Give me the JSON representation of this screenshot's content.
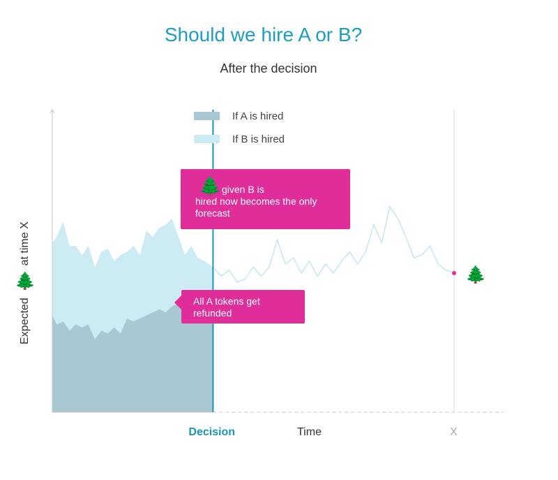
{
  "header": {
    "title": "Should we hire  A or B?",
    "subtitle": "After the decision"
  },
  "legend": {
    "a_label": "If  A is hired",
    "b_label": "If  B is hired"
  },
  "callouts": {
    "top_line1": "given B is",
    "top_rest": "hired now becomes the only forecast",
    "bottom": "All  A tokens get refunded"
  },
  "axis": {
    "y_label_top": "at time X",
    "y_label_bottom": "Expected",
    "icon": "tree-icon"
  },
  "colors": {
    "a_fill": "#a8c9d1",
    "b_fill": "#cdebf2",
    "b_line": "#c3e5ef",
    "decision_line": "#1b95b8",
    "callout": "#df2e99",
    "title": "#1e9dbf",
    "x_label": "#aaaaaa"
  },
  "chart_data": {
    "type": "area",
    "xlabel": "Time",
    "x_ticks": [
      {
        "label": "Decision",
        "x": 0.4,
        "color": "#1b95b8"
      },
      {
        "label": "X",
        "x": 1.0,
        "color": "#aaaaaa"
      }
    ],
    "x_range": [
      0,
      1.12
    ],
    "y_range": [
      0,
      1
    ],
    "grid": false,
    "legend_position": "top",
    "series": [
      {
        "name": "If  A is hired",
        "style": "filled-area",
        "x": [
          0,
          0.011,
          0.027,
          0.043,
          0.058,
          0.074,
          0.09,
          0.106,
          0.122,
          0.138,
          0.154,
          0.17,
          0.186,
          0.202,
          0.218,
          0.234,
          0.25,
          0.266,
          0.282,
          0.298,
          0.314,
          0.33,
          0.346,
          0.362,
          0.378,
          0.4
        ],
        "y": [
          0.32,
          0.29,
          0.3,
          0.27,
          0.29,
          0.28,
          0.29,
          0.24,
          0.27,
          0.26,
          0.28,
          0.26,
          0.31,
          0.3,
          0.31,
          0.32,
          0.33,
          0.34,
          0.33,
          0.35,
          0.36,
          0.37,
          0.39,
          0.36,
          0.39,
          0.38
        ]
      },
      {
        "name": "If  B is hired",
        "style": "area-then-line",
        "fill_until_x": 0.4,
        "x": [
          0,
          0.011,
          0.027,
          0.043,
          0.058,
          0.074,
          0.09,
          0.106,
          0.122,
          0.138,
          0.154,
          0.17,
          0.186,
          0.202,
          0.218,
          0.234,
          0.25,
          0.266,
          0.282,
          0.298,
          0.314,
          0.33,
          0.346,
          0.362,
          0.378,
          0.4,
          0.42,
          0.44,
          0.46,
          0.48,
          0.5,
          0.52,
          0.54,
          0.56,
          0.58,
          0.6,
          0.62,
          0.64,
          0.66,
          0.68,
          0.7,
          0.72,
          0.74,
          0.76,
          0.78,
          0.8,
          0.82,
          0.84,
          0.86,
          0.88,
          0.9,
          0.92,
          0.94,
          0.96,
          0.98,
          1.0
        ],
        "y": [
          0.56,
          0.58,
          0.63,
          0.55,
          0.55,
          0.52,
          0.55,
          0.48,
          0.53,
          0.54,
          0.5,
          0.52,
          0.53,
          0.55,
          0.52,
          0.6,
          0.58,
          0.61,
          0.62,
          0.64,
          0.58,
          0.52,
          0.55,
          0.51,
          0.5,
          0.48,
          0.45,
          0.47,
          0.43,
          0.44,
          0.48,
          0.45,
          0.48,
          0.57,
          0.49,
          0.51,
          0.46,
          0.5,
          0.45,
          0.49,
          0.46,
          0.5,
          0.53,
          0.49,
          0.53,
          0.62,
          0.56,
          0.68,
          0.64,
          0.58,
          0.51,
          0.52,
          0.55,
          0.49,
          0.47,
          0.46
        ]
      }
    ],
    "endpoint": {
      "x": 1.0,
      "y": 0.46,
      "color": "#df2e99"
    }
  }
}
